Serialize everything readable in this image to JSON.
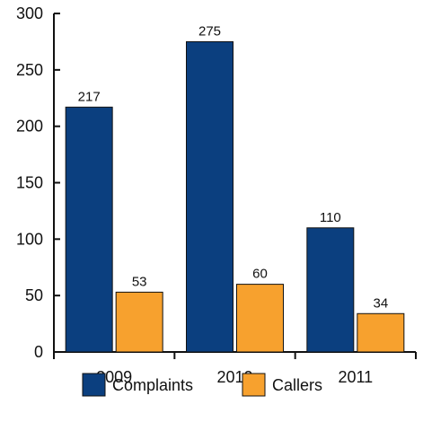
{
  "chart_data": {
    "type": "bar",
    "categories": [
      "2009",
      "2010",
      "2011"
    ],
    "series": [
      {
        "name": "Complaints",
        "values": [
          217,
          275,
          110
        ],
        "color": "#0b3f7f"
      },
      {
        "name": "Callers",
        "values": [
          53,
          60,
          34
        ],
        "color": "#f7a12e"
      }
    ],
    "ylim": [
      0,
      300
    ],
    "yticks": [
      "0",
      "50",
      "100",
      "150",
      "200",
      "250",
      "300"
    ],
    "title": "",
    "xlabel": "",
    "ylabel": "",
    "grid": false,
    "legend_position": "bottom"
  }
}
